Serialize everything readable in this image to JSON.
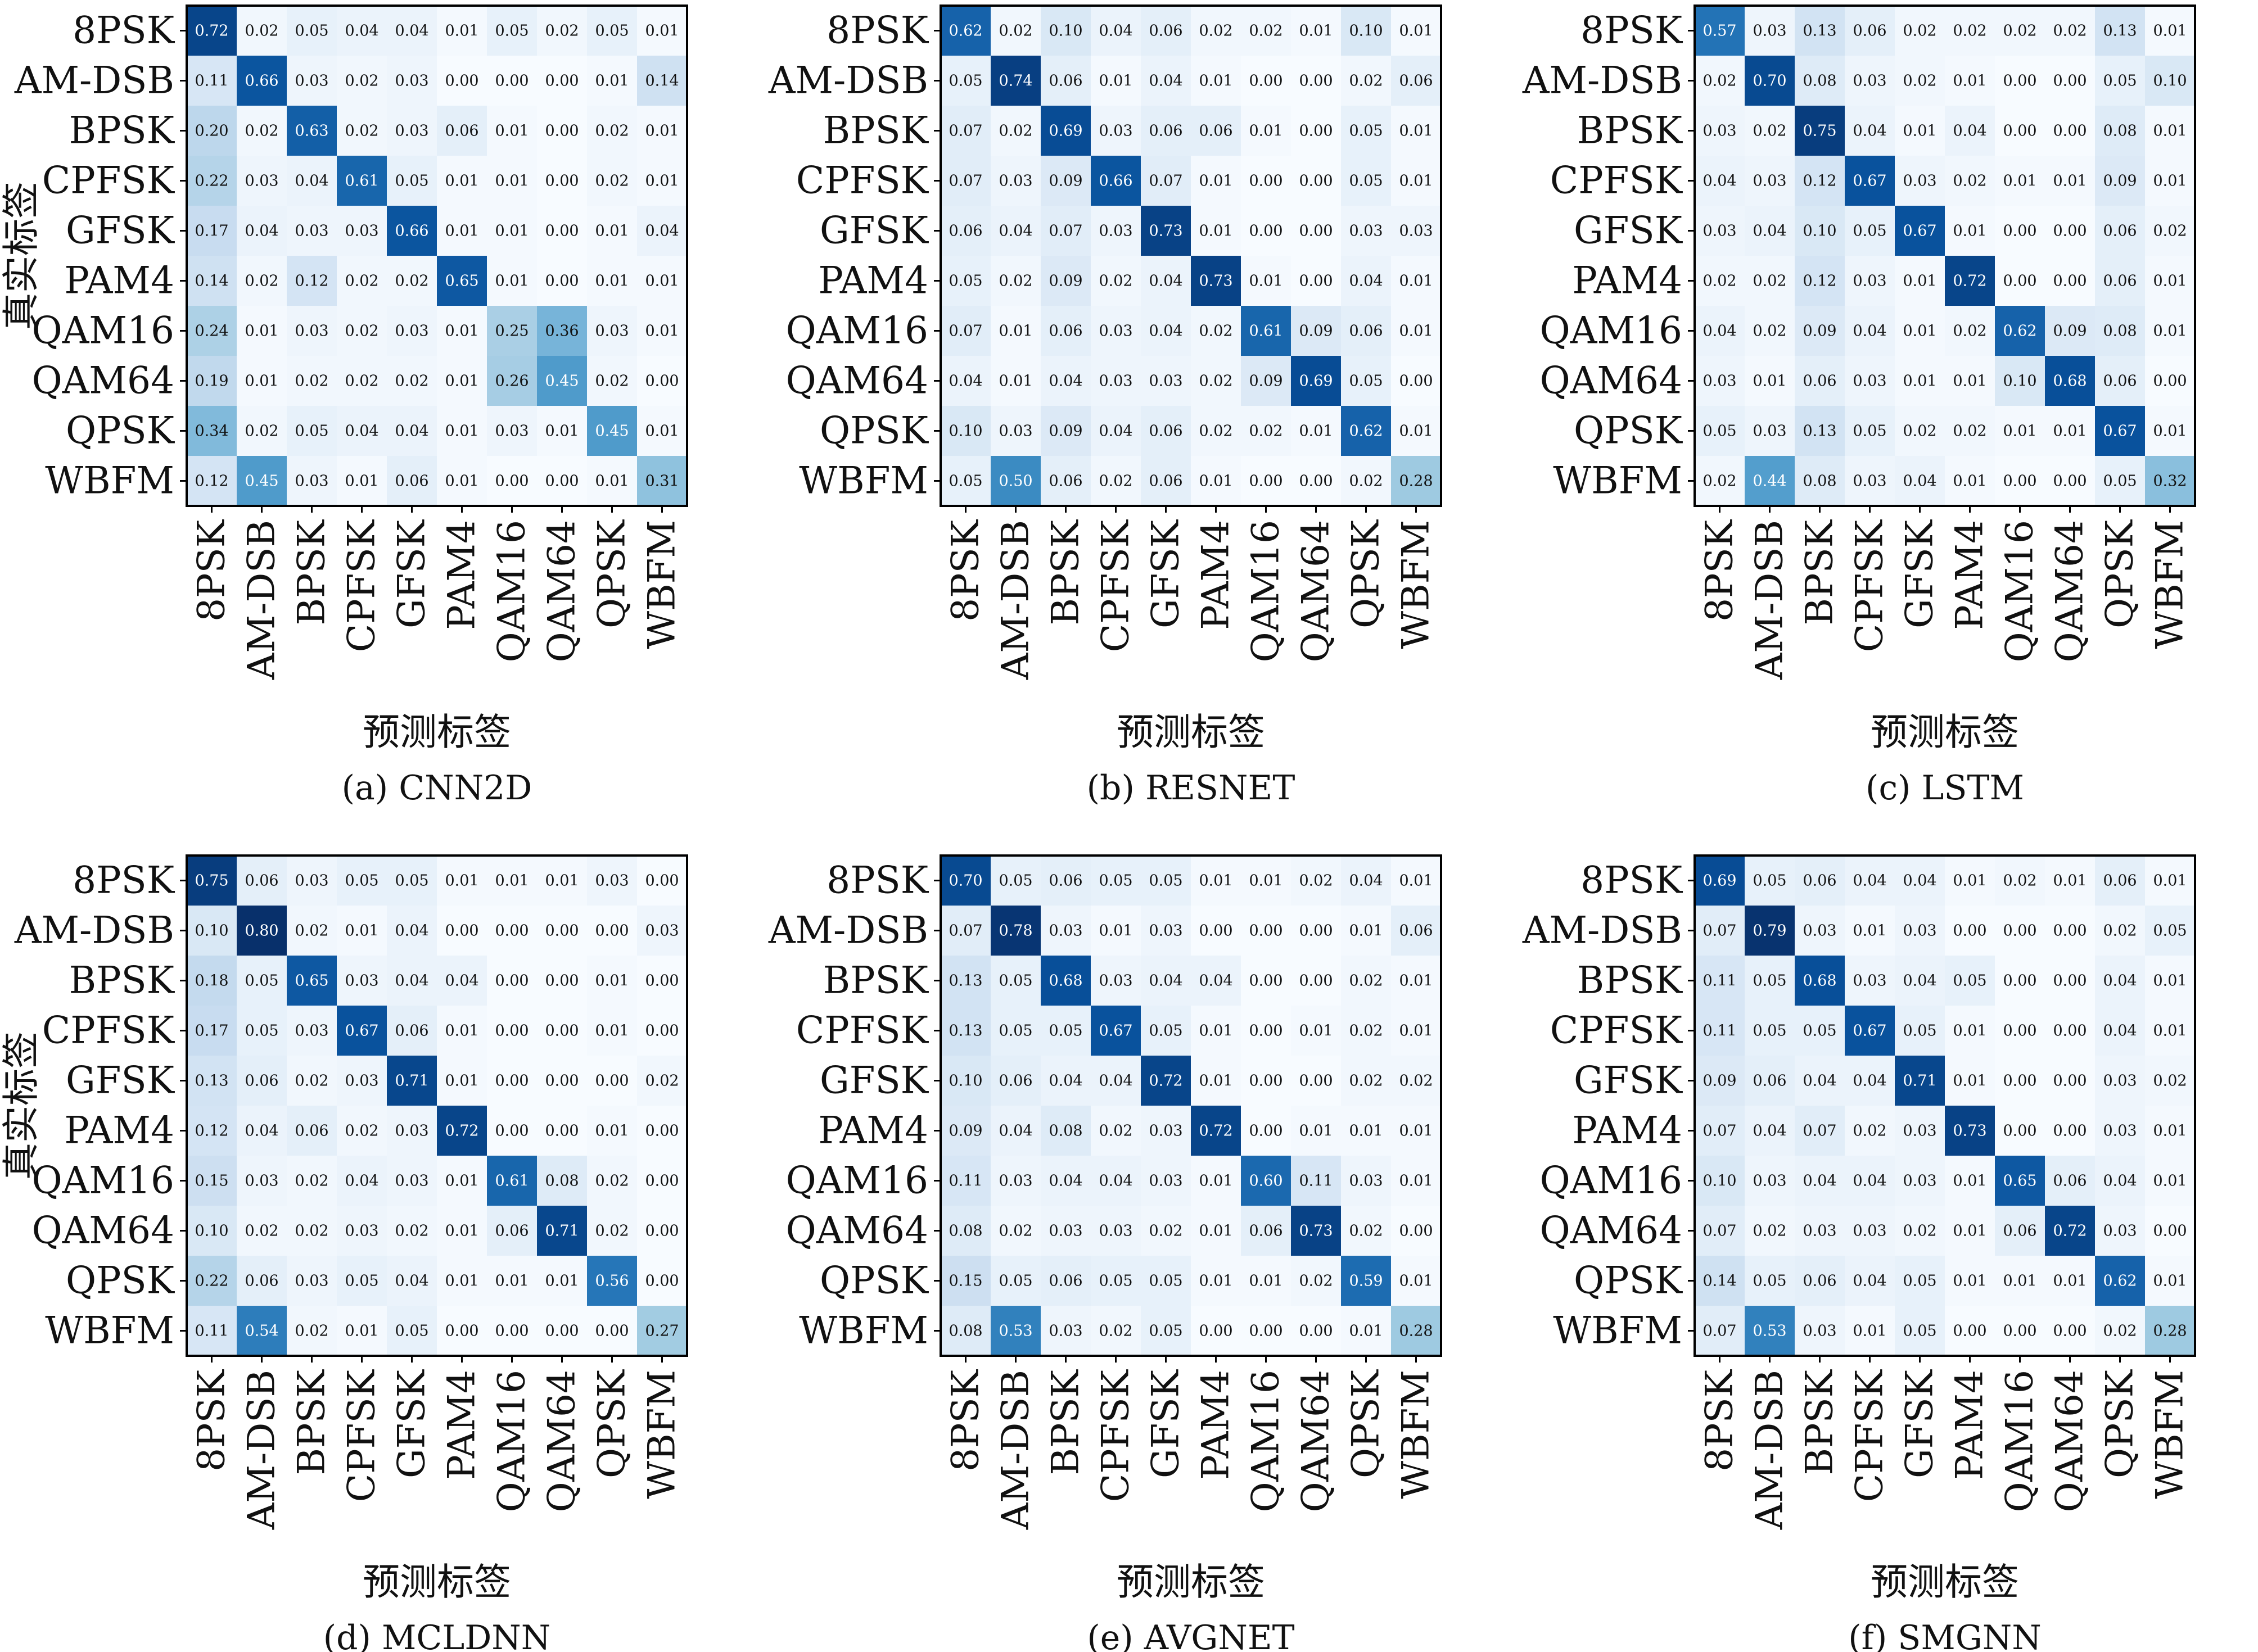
{
  "chart_data": [
    {
      "type": "heatmap",
      "caption": "(a) CNN2D",
      "xlabel": "预测标签",
      "ylabel": "真实标签",
      "row_labels": [
        "8PSK",
        "AM-DSB",
        "BPSK",
        "CPFSK",
        "GFSK",
        "PAM4",
        "QAM16",
        "QAM64",
        "QPSK",
        "WBFM"
      ],
      "col_labels": [
        "8PSK",
        "AM-DSB",
        "BPSK",
        "CPFSK",
        "GFSK",
        "PAM4",
        "QAM16",
        "QAM64",
        "QPSK",
        "WBFM"
      ],
      "values": [
        [
          "0.72",
          "0.02",
          "0.05",
          "0.04",
          "0.04",
          "0.01",
          "0.05",
          "0.02",
          "0.05",
          "0.01"
        ],
        [
          "0.11",
          "0.66",
          "0.03",
          "0.02",
          "0.03",
          "0.00",
          "0.00",
          "0.00",
          "0.01",
          "0.14"
        ],
        [
          "0.20",
          "0.02",
          "0.63",
          "0.02",
          "0.03",
          "0.06",
          "0.01",
          "0.00",
          "0.02",
          "0.01"
        ],
        [
          "0.22",
          "0.03",
          "0.04",
          "0.61",
          "0.05",
          "0.01",
          "0.01",
          "0.00",
          "0.02",
          "0.01"
        ],
        [
          "0.17",
          "0.04",
          "0.03",
          "0.03",
          "0.66",
          "0.01",
          "0.01",
          "0.00",
          "0.01",
          "0.04"
        ],
        [
          "0.14",
          "0.02",
          "0.12",
          "0.02",
          "0.02",
          "0.65",
          "0.01",
          "0.00",
          "0.01",
          "0.01"
        ],
        [
          "0.24",
          "0.01",
          "0.03",
          "0.02",
          "0.03",
          "0.01",
          "0.25",
          "0.36",
          "0.03",
          "0.01"
        ],
        [
          "0.19",
          "0.01",
          "0.02",
          "0.02",
          "0.02",
          "0.01",
          "0.26",
          "0.45",
          "0.02",
          "0.00"
        ],
        [
          "0.34",
          "0.02",
          "0.05",
          "0.04",
          "0.04",
          "0.01",
          "0.03",
          "0.01",
          "0.45",
          "0.01"
        ],
        [
          "0.12",
          "0.45",
          "0.03",
          "0.01",
          "0.06",
          "0.01",
          "0.00",
          "0.00",
          "0.01",
          "0.31"
        ]
      ]
    },
    {
      "type": "heatmap",
      "caption": "(b) RESNET",
      "xlabel": "预测标签",
      "ylabel": "",
      "row_labels": [
        "8PSK",
        "AM-DSB",
        "BPSK",
        "CPFSK",
        "GFSK",
        "PAM4",
        "QAM16",
        "QAM64",
        "QPSK",
        "WBFM"
      ],
      "col_labels": [
        "8PSK",
        "AM-DSB",
        "BPSK",
        "CPFSK",
        "GFSK",
        "PAM4",
        "QAM16",
        "QAM64",
        "QPSK",
        "WBFM"
      ],
      "values": [
        [
          "0.62",
          "0.02",
          "0.10",
          "0.04",
          "0.06",
          "0.02",
          "0.02",
          "0.01",
          "0.10",
          "0.01"
        ],
        [
          "0.05",
          "0.74",
          "0.06",
          "0.01",
          "0.04",
          "0.01",
          "0.00",
          "0.00",
          "0.02",
          "0.06"
        ],
        [
          "0.07",
          "0.02",
          "0.69",
          "0.03",
          "0.06",
          "0.06",
          "0.01",
          "0.00",
          "0.05",
          "0.01"
        ],
        [
          "0.07",
          "0.03",
          "0.09",
          "0.66",
          "0.07",
          "0.01",
          "0.00",
          "0.00",
          "0.05",
          "0.01"
        ],
        [
          "0.06",
          "0.04",
          "0.07",
          "0.03",
          "0.73",
          "0.01",
          "0.00",
          "0.00",
          "0.03",
          "0.03"
        ],
        [
          "0.05",
          "0.02",
          "0.09",
          "0.02",
          "0.04",
          "0.73",
          "0.01",
          "0.00",
          "0.04",
          "0.01"
        ],
        [
          "0.07",
          "0.01",
          "0.06",
          "0.03",
          "0.04",
          "0.02",
          "0.61",
          "0.09",
          "0.06",
          "0.01"
        ],
        [
          "0.04",
          "0.01",
          "0.04",
          "0.03",
          "0.03",
          "0.02",
          "0.09",
          "0.69",
          "0.05",
          "0.00"
        ],
        [
          "0.10",
          "0.03",
          "0.09",
          "0.04",
          "0.06",
          "0.02",
          "0.02",
          "0.01",
          "0.62",
          "0.01"
        ],
        [
          "0.05",
          "0.50",
          "0.06",
          "0.02",
          "0.06",
          "0.01",
          "0.00",
          "0.00",
          "0.02",
          "0.28"
        ]
      ]
    },
    {
      "type": "heatmap",
      "caption": "(c) LSTM",
      "xlabel": "预测标签",
      "ylabel": "",
      "row_labels": [
        "8PSK",
        "AM-DSB",
        "BPSK",
        "CPFSK",
        "GFSK",
        "PAM4",
        "QAM16",
        "QAM64",
        "QPSK",
        "WBFM"
      ],
      "col_labels": [
        "8PSK",
        "AM-DSB",
        "BPSK",
        "CPFSK",
        "GFSK",
        "PAM4",
        "QAM16",
        "QAM64",
        "QPSK",
        "WBFM"
      ],
      "values": [
        [
          "0.57",
          "0.03",
          "0.13",
          "0.06",
          "0.02",
          "0.02",
          "0.02",
          "0.02",
          "0.13",
          "0.01"
        ],
        [
          "0.02",
          "0.70",
          "0.08",
          "0.03",
          "0.02",
          "0.01",
          "0.00",
          "0.00",
          "0.05",
          "0.10"
        ],
        [
          "0.03",
          "0.02",
          "0.75",
          "0.04",
          "0.01",
          "0.04",
          "0.00",
          "0.00",
          "0.08",
          "0.01"
        ],
        [
          "0.04",
          "0.03",
          "0.12",
          "0.67",
          "0.03",
          "0.02",
          "0.01",
          "0.01",
          "0.09",
          "0.01"
        ],
        [
          "0.03",
          "0.04",
          "0.10",
          "0.05",
          "0.67",
          "0.01",
          "0.00",
          "0.00",
          "0.06",
          "0.02"
        ],
        [
          "0.02",
          "0.02",
          "0.12",
          "0.03",
          "0.01",
          "0.72",
          "0.00",
          "0.00",
          "0.06",
          "0.01"
        ],
        [
          "0.04",
          "0.02",
          "0.09",
          "0.04",
          "0.01",
          "0.02",
          "0.62",
          "0.09",
          "0.08",
          "0.01"
        ],
        [
          "0.03",
          "0.01",
          "0.06",
          "0.03",
          "0.01",
          "0.01",
          "0.10",
          "0.68",
          "0.06",
          "0.00"
        ],
        [
          "0.05",
          "0.03",
          "0.13",
          "0.05",
          "0.02",
          "0.02",
          "0.01",
          "0.01",
          "0.67",
          "0.01"
        ],
        [
          "0.02",
          "0.44",
          "0.08",
          "0.03",
          "0.04",
          "0.01",
          "0.00",
          "0.00",
          "0.05",
          "0.32"
        ]
      ]
    },
    {
      "type": "heatmap",
      "caption": "(d) MCLDNN",
      "xlabel": "预测标签",
      "ylabel": "真实标签",
      "row_labels": [
        "8PSK",
        "AM-DSB",
        "BPSK",
        "CPFSK",
        "GFSK",
        "PAM4",
        "QAM16",
        "QAM64",
        "QPSK",
        "WBFM"
      ],
      "col_labels": [
        "8PSK",
        "AM-DSB",
        "BPSK",
        "CPFSK",
        "GFSK",
        "PAM4",
        "QAM16",
        "QAM64",
        "QPSK",
        "WBFM"
      ],
      "values": [
        [
          "0.75",
          "0.06",
          "0.03",
          "0.05",
          "0.05",
          "0.01",
          "0.01",
          "0.01",
          "0.03",
          "0.00"
        ],
        [
          "0.10",
          "0.80",
          "0.02",
          "0.01",
          "0.04",
          "0.00",
          "0.00",
          "0.00",
          "0.00",
          "0.03"
        ],
        [
          "0.18",
          "0.05",
          "0.65",
          "0.03",
          "0.04",
          "0.04",
          "0.00",
          "0.00",
          "0.01",
          "0.00"
        ],
        [
          "0.17",
          "0.05",
          "0.03",
          "0.67",
          "0.06",
          "0.01",
          "0.00",
          "0.00",
          "0.01",
          "0.00"
        ],
        [
          "0.13",
          "0.06",
          "0.02",
          "0.03",
          "0.71",
          "0.01",
          "0.00",
          "0.00",
          "0.00",
          "0.02"
        ],
        [
          "0.12",
          "0.04",
          "0.06",
          "0.02",
          "0.03",
          "0.72",
          "0.00",
          "0.00",
          "0.01",
          "0.00"
        ],
        [
          "0.15",
          "0.03",
          "0.02",
          "0.04",
          "0.03",
          "0.01",
          "0.61",
          "0.08",
          "0.02",
          "0.00"
        ],
        [
          "0.10",
          "0.02",
          "0.02",
          "0.03",
          "0.02",
          "0.01",
          "0.06",
          "0.71",
          "0.02",
          "0.00"
        ],
        [
          "0.22",
          "0.06",
          "0.03",
          "0.05",
          "0.04",
          "0.01",
          "0.01",
          "0.01",
          "0.56",
          "0.00"
        ],
        [
          "0.11",
          "0.54",
          "0.02",
          "0.01",
          "0.05",
          "0.00",
          "0.00",
          "0.00",
          "0.00",
          "0.27"
        ]
      ]
    },
    {
      "type": "heatmap",
      "caption": "(e) AVGNET",
      "xlabel": "预测标签",
      "ylabel": "",
      "row_labels": [
        "8PSK",
        "AM-DSB",
        "BPSK",
        "CPFSK",
        "GFSK",
        "PAM4",
        "QAM16",
        "QAM64",
        "QPSK",
        "WBFM"
      ],
      "col_labels": [
        "8PSK",
        "AM-DSB",
        "BPSK",
        "CPFSK",
        "GFSK",
        "PAM4",
        "QAM16",
        "QAM64",
        "QPSK",
        "WBFM"
      ],
      "values": [
        [
          "0.70",
          "0.05",
          "0.06",
          "0.05",
          "0.05",
          "0.01",
          "0.01",
          "0.02",
          "0.04",
          "0.01"
        ],
        [
          "0.07",
          "0.78",
          "0.03",
          "0.01",
          "0.03",
          "0.00",
          "0.00",
          "0.00",
          "0.01",
          "0.06"
        ],
        [
          "0.13",
          "0.05",
          "0.68",
          "0.03",
          "0.04",
          "0.04",
          "0.00",
          "0.00",
          "0.02",
          "0.01"
        ],
        [
          "0.13",
          "0.05",
          "0.05",
          "0.67",
          "0.05",
          "0.01",
          "0.00",
          "0.01",
          "0.02",
          "0.01"
        ],
        [
          "0.10",
          "0.06",
          "0.04",
          "0.04",
          "0.72",
          "0.01",
          "0.00",
          "0.00",
          "0.02",
          "0.02"
        ],
        [
          "0.09",
          "0.04",
          "0.08",
          "0.02",
          "0.03",
          "0.72",
          "0.00",
          "0.01",
          "0.01",
          "0.01"
        ],
        [
          "0.11",
          "0.03",
          "0.04",
          "0.04",
          "0.03",
          "0.01",
          "0.60",
          "0.11",
          "0.03",
          "0.01"
        ],
        [
          "0.08",
          "0.02",
          "0.03",
          "0.03",
          "0.02",
          "0.01",
          "0.06",
          "0.73",
          "0.02",
          "0.00"
        ],
        [
          "0.15",
          "0.05",
          "0.06",
          "0.05",
          "0.05",
          "0.01",
          "0.01",
          "0.02",
          "0.59",
          "0.01"
        ],
        [
          "0.08",
          "0.53",
          "0.03",
          "0.02",
          "0.05",
          "0.00",
          "0.00",
          "0.00",
          "0.01",
          "0.28"
        ]
      ]
    },
    {
      "type": "heatmap",
      "caption": "(f) SMGNN",
      "xlabel": "预测标签",
      "ylabel": "",
      "row_labels": [
        "8PSK",
        "AM-DSB",
        "BPSK",
        "CPFSK",
        "GFSK",
        "PAM4",
        "QAM16",
        "QAM64",
        "QPSK",
        "WBFM"
      ],
      "col_labels": [
        "8PSK",
        "AM-DSB",
        "BPSK",
        "CPFSK",
        "GFSK",
        "PAM4",
        "QAM16",
        "QAM64",
        "QPSK",
        "WBFM"
      ],
      "values": [
        [
          "0.69",
          "0.05",
          "0.06",
          "0.04",
          "0.04",
          "0.01",
          "0.02",
          "0.01",
          "0.06",
          "0.01"
        ],
        [
          "0.07",
          "0.79",
          "0.03",
          "0.01",
          "0.03",
          "0.00",
          "0.00",
          "0.00",
          "0.02",
          "0.05"
        ],
        [
          "0.11",
          "0.05",
          "0.68",
          "0.03",
          "0.04",
          "0.05",
          "0.00",
          "0.00",
          "0.04",
          "0.01"
        ],
        [
          "0.11",
          "0.05",
          "0.05",
          "0.67",
          "0.05",
          "0.01",
          "0.00",
          "0.00",
          "0.04",
          "0.01"
        ],
        [
          "0.09",
          "0.06",
          "0.04",
          "0.04",
          "0.71",
          "0.01",
          "0.00",
          "0.00",
          "0.03",
          "0.02"
        ],
        [
          "0.07",
          "0.04",
          "0.07",
          "0.02",
          "0.03",
          "0.73",
          "0.00",
          "0.00",
          "0.03",
          "0.01"
        ],
        [
          "0.10",
          "0.03",
          "0.04",
          "0.04",
          "0.03",
          "0.01",
          "0.65",
          "0.06",
          "0.04",
          "0.01"
        ],
        [
          "0.07",
          "0.02",
          "0.03",
          "0.03",
          "0.02",
          "0.01",
          "0.06",
          "0.72",
          "0.03",
          "0.00"
        ],
        [
          "0.14",
          "0.05",
          "0.06",
          "0.04",
          "0.05",
          "0.01",
          "0.01",
          "0.01",
          "0.62",
          "0.01"
        ],
        [
          "0.07",
          "0.53",
          "0.03",
          "0.01",
          "0.05",
          "0.00",
          "0.00",
          "0.00",
          "0.02",
          "0.28"
        ]
      ]
    }
  ]
}
